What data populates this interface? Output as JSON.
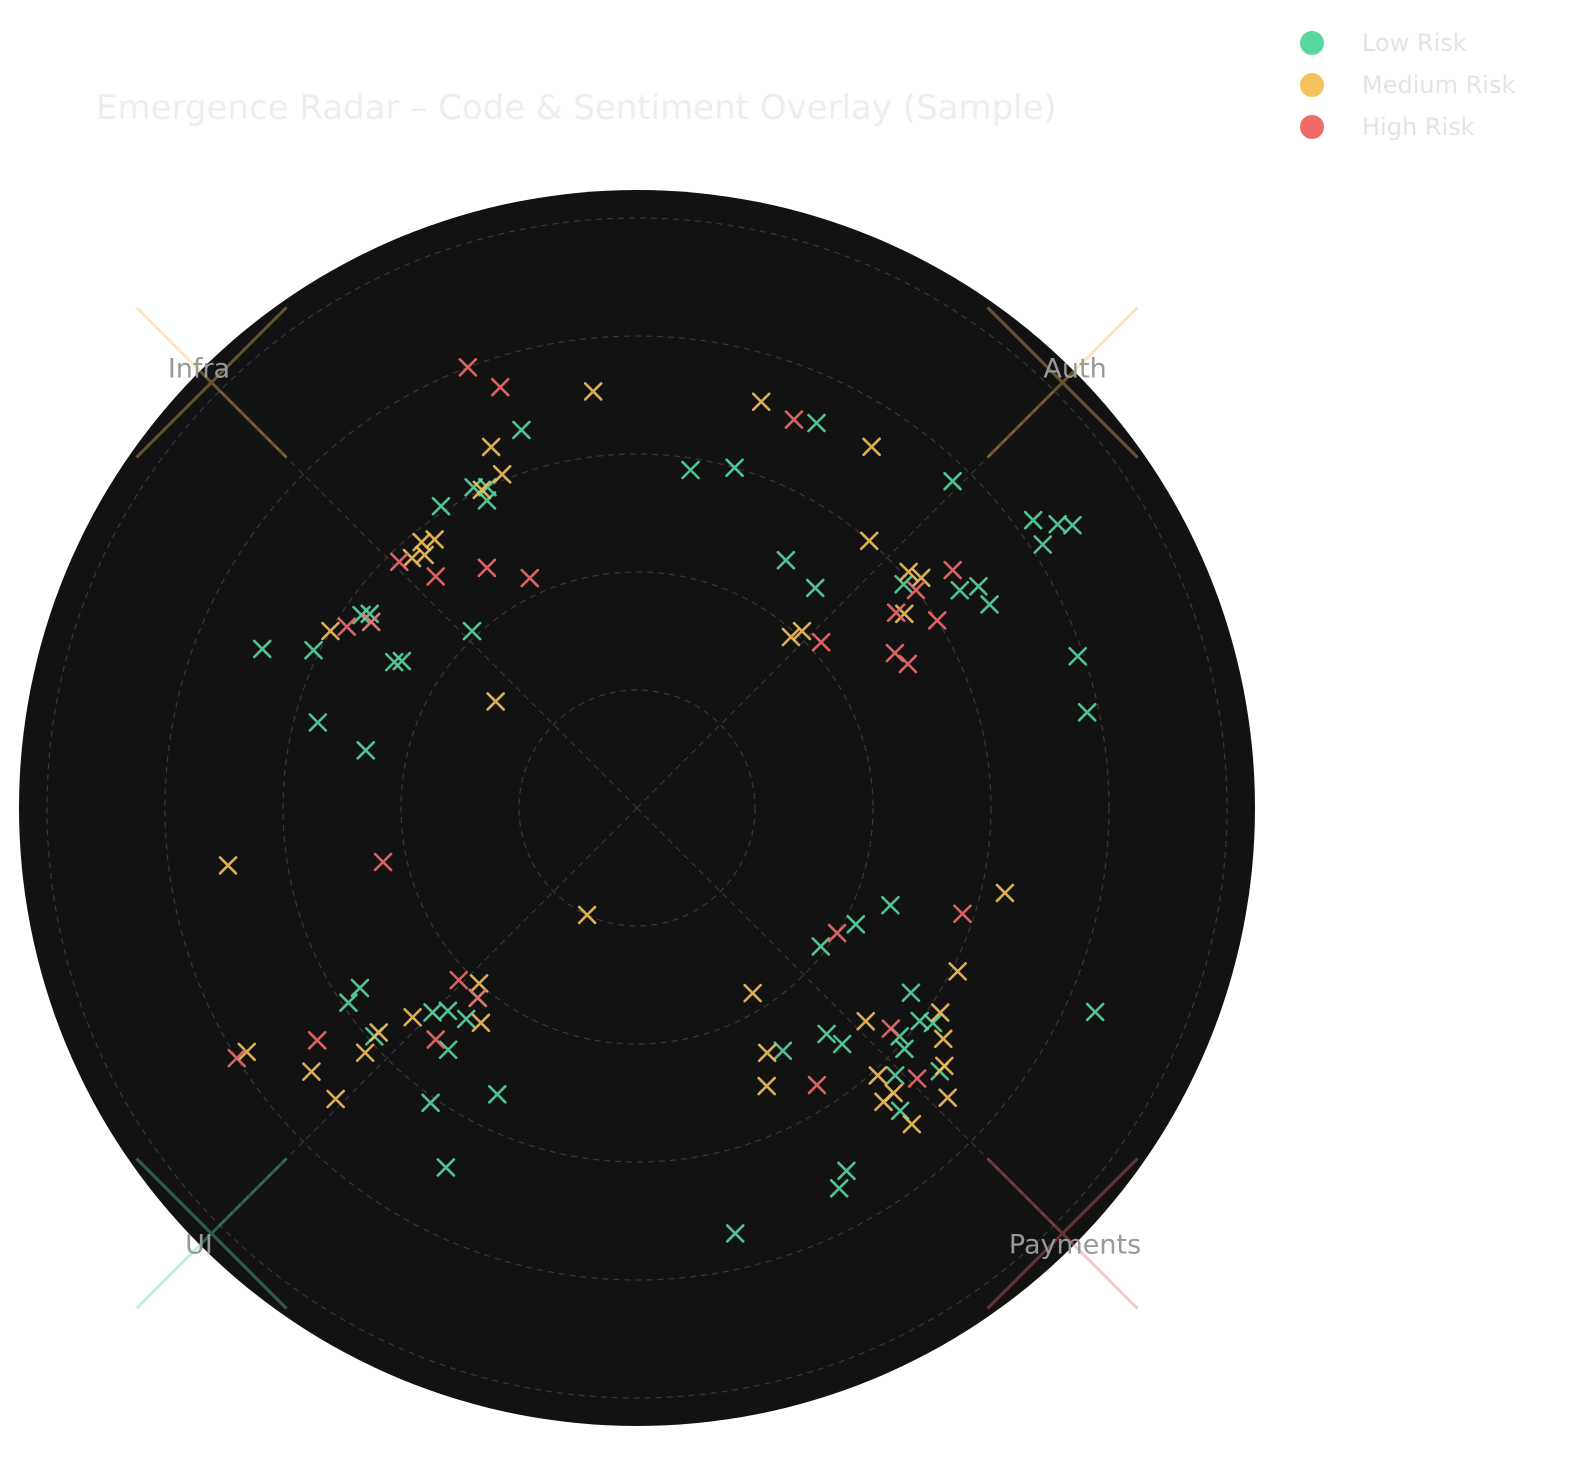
{
  "chart_data": {
    "type": "scatter",
    "projection": "polar",
    "title": "Emergence Radar – Code & Sentiment Overlay (Sample)",
    "quadrants": [
      "Auth",
      "Payments",
      "UI",
      "Infra"
    ],
    "quadrant_angles_deg": [
      45,
      135,
      225,
      315
    ],
    "r_range": [
      0,
      1
    ],
    "r_grid": [
      0.2,
      0.4,
      0.6,
      0.8,
      1.0
    ],
    "grid": true,
    "marker": "x",
    "background": "#121212",
    "legend": {
      "placement": "top-right",
      "entries": [
        {
          "name": "Low Risk",
          "color": "#58d6a0"
        },
        {
          "name": "Medium Risk",
          "color": "#f4c15d"
        },
        {
          "name": "High Risk",
          "color": "#ef6b6b"
        }
      ]
    },
    "quadrant_markers": [
      {
        "quadrant": "Auth",
        "angle_deg": 45,
        "r": 1.02,
        "color": "#f4c15d"
      },
      {
        "quadrant": "Payments",
        "angle_deg": 135,
        "r": 1.02,
        "color": "#ef6b6b"
      },
      {
        "quadrant": "UI",
        "angle_deg": 225,
        "r": 1.02,
        "color": "#58d6a0"
      },
      {
        "quadrant": "Infra",
        "angle_deg": 315,
        "r": 1.02,
        "color": "#f4c15d"
      }
    ],
    "series": [
      {
        "name": "Low Risk",
        "color": "#58d6a0",
        "points": [
          {
            "angle_deg": 16,
            "r": 0.6
          },
          {
            "angle_deg": 25,
            "r": 0.72
          },
          {
            "angle_deg": 31,
            "r": 0.49
          },
          {
            "angle_deg": 39,
            "r": 0.48
          },
          {
            "angle_deg": 44,
            "r": 0.77
          },
          {
            "angle_deg": 50,
            "r": 0.59
          },
          {
            "angle_deg": 54,
            "r": 0.83
          },
          {
            "angle_deg": 56,
            "r": 0.66
          },
          {
            "angle_deg": 56,
            "r": 0.86
          },
          {
            "angle_deg": 57,
            "r": 0.82
          },
          {
            "angle_deg": 57,
            "r": 0.69
          },
          {
            "angle_deg": 57,
            "r": 0.88
          },
          {
            "angle_deg": 60,
            "r": 0.69
          },
          {
            "angle_deg": 71,
            "r": 0.79
          },
          {
            "angle_deg": 78,
            "r": 0.78
          },
          {
            "angle_deg": 111,
            "r": 0.46
          },
          {
            "angle_deg": 114,
            "r": 0.85
          },
          {
            "angle_deg": 118,
            "r": 0.42
          },
          {
            "angle_deg": 124,
            "r": 0.56
          },
          {
            "angle_deg": 126,
            "r": 0.62
          },
          {
            "angle_deg": 127,
            "r": 0.6
          },
          {
            "angle_deg": 127,
            "r": 0.39
          },
          {
            "angle_deg": 131,
            "r": 0.68
          },
          {
            "angle_deg": 131,
            "r": 0.59
          },
          {
            "angle_deg": 132,
            "r": 0.61
          },
          {
            "angle_deg": 136,
            "r": 0.63
          },
          {
            "angle_deg": 139,
            "r": 0.53
          },
          {
            "angle_deg": 149,
            "r": 0.48
          },
          {
            "angle_deg": 150,
            "r": 0.71
          },
          {
            "angle_deg": 152,
            "r": 0.73
          },
          {
            "angle_deg": 167,
            "r": 0.74
          },
          {
            "angle_deg": 140,
            "r": 0.5
          },
          {
            "angle_deg": 139,
            "r": 0.68
          },
          {
            "angle_deg": 206,
            "r": 0.54
          },
          {
            "angle_deg": 208,
            "r": 0.69
          },
          {
            "angle_deg": 215,
            "r": 0.61
          },
          {
            "angle_deg": 218,
            "r": 0.52
          },
          {
            "angle_deg": 219,
            "r": 0.46
          },
          {
            "angle_deg": 220,
            "r": 0.42
          },
          {
            "angle_deg": 223,
            "r": 0.47
          },
          {
            "angle_deg": 225,
            "r": 0.49
          },
          {
            "angle_deg": 229,
            "r": 0.59
          },
          {
            "angle_deg": 236,
            "r": 0.59
          },
          {
            "angle_deg": 237,
            "r": 0.56
          },
          {
            "angle_deg": 282,
            "r": 0.47
          },
          {
            "angle_deg": 285,
            "r": 0.56
          },
          {
            "angle_deg": 293,
            "r": 0.69
          },
          {
            "angle_deg": 296,
            "r": 0.61
          },
          {
            "angle_deg": 301,
            "r": 0.48
          },
          {
            "angle_deg": 302,
            "r": 0.47
          },
          {
            "angle_deg": 305,
            "r": 0.55
          },
          {
            "angle_deg": 305,
            "r": 0.57
          },
          {
            "angle_deg": 306,
            "r": 0.56
          },
          {
            "angle_deg": 317,
            "r": 0.41
          },
          {
            "angle_deg": 327,
            "r": 0.61
          },
          {
            "angle_deg": 333,
            "r": 0.61
          },
          {
            "angle_deg": 334,
            "r": 0.58
          },
          {
            "angle_deg": 335,
            "r": 0.6
          },
          {
            "angle_deg": 343,
            "r": 0.67
          },
          {
            "angle_deg": 9,
            "r": 0.58
          }
        ]
      },
      {
        "name": "Medium Risk",
        "color": "#f4c15d",
        "points": [
          {
            "angle_deg": 17,
            "r": 0.72
          },
          {
            "angle_deg": 33,
            "r": 0.73
          },
          {
            "angle_deg": 41,
            "r": 0.6
          },
          {
            "angle_deg": 42,
            "r": 0.39
          },
          {
            "angle_deg": 43,
            "r": 0.41
          },
          {
            "angle_deg": 49,
            "r": 0.61
          },
          {
            "angle_deg": 51,
            "r": 0.62
          },
          {
            "angle_deg": 54,
            "r": 0.56
          },
          {
            "angle_deg": 103,
            "r": 0.64
          },
          {
            "angle_deg": 117,
            "r": 0.61
          },
          {
            "angle_deg": 124,
            "r": 0.62
          },
          {
            "angle_deg": 127,
            "r": 0.65
          },
          {
            "angle_deg": 130,
            "r": 0.68
          },
          {
            "angle_deg": 133,
            "r": 0.53
          },
          {
            "angle_deg": 133,
            "r": 0.72
          },
          {
            "angle_deg": 138,
            "r": 0.65
          },
          {
            "angle_deg": 138,
            "r": 0.61
          },
          {
            "angle_deg": 139,
            "r": 0.71
          },
          {
            "angle_deg": 140,
            "r": 0.65
          },
          {
            "angle_deg": 148,
            "r": 0.37
          },
          {
            "angle_deg": 152,
            "r": 0.47
          },
          {
            "angle_deg": 155,
            "r": 0.52
          },
          {
            "angle_deg": 205,
            "r": 0.2
          },
          {
            "angle_deg": 216,
            "r": 0.45
          },
          {
            "angle_deg": 222,
            "r": 0.4
          },
          {
            "angle_deg": 226,
            "r": 0.71
          },
          {
            "angle_deg": 227,
            "r": 0.52
          },
          {
            "angle_deg": 228,
            "r": 0.62
          },
          {
            "angle_deg": 229,
            "r": 0.58
          },
          {
            "angle_deg": 231,
            "r": 0.71
          },
          {
            "angle_deg": 238,
            "r": 0.78
          },
          {
            "angle_deg": 262,
            "r": 0.7
          },
          {
            "angle_deg": 300,
            "r": 0.6
          },
          {
            "angle_deg": 307,
            "r": 0.3
          },
          {
            "angle_deg": 318,
            "r": 0.57
          },
          {
            "angle_deg": 320,
            "r": 0.56
          },
          {
            "angle_deg": 323,
            "r": 0.57
          },
          {
            "angle_deg": 334,
            "r": 0.6
          },
          {
            "angle_deg": 338,
            "r": 0.66
          },
          {
            "angle_deg": 338,
            "r": 0.61
          },
          {
            "angle_deg": 354,
            "r": 0.71
          },
          {
            "angle_deg": 321,
            "r": 0.58
          }
        ]
      },
      {
        "name": "High Risk",
        "color": "#ef6b6b",
        "points": [
          {
            "angle_deg": 22,
            "r": 0.71
          },
          {
            "angle_deg": 48,
            "r": 0.42
          },
          {
            "angle_deg": 52,
            "r": 0.6
          },
          {
            "angle_deg": 53,
            "r": 0.55
          },
          {
            "angle_deg": 58,
            "r": 0.6
          },
          {
            "angle_deg": 59,
            "r": 0.51
          },
          {
            "angle_deg": 62,
            "r": 0.52
          },
          {
            "angle_deg": 53,
            "r": 0.67
          },
          {
            "angle_deg": 108,
            "r": 0.58
          },
          {
            "angle_deg": 122,
            "r": 0.4
          },
          {
            "angle_deg": 131,
            "r": 0.57
          },
          {
            "angle_deg": 134,
            "r": 0.66
          },
          {
            "angle_deg": 147,
            "r": 0.56
          },
          {
            "angle_deg": 220,
            "r": 0.42
          },
          {
            "angle_deg": 221,
            "r": 0.52
          },
          {
            "angle_deg": 226,
            "r": 0.42
          },
          {
            "angle_deg": 234,
            "r": 0.67
          },
          {
            "angle_deg": 238,
            "r": 0.8
          },
          {
            "angle_deg": 258,
            "r": 0.44
          },
          {
            "angle_deg": 302,
            "r": 0.58
          },
          {
            "angle_deg": 305,
            "r": 0.55
          },
          {
            "angle_deg": 319,
            "r": 0.52
          },
          {
            "angle_deg": 328,
            "r": 0.48
          },
          {
            "angle_deg": 335,
            "r": 0.43
          },
          {
            "angle_deg": 339,
            "r": 0.8
          },
          {
            "angle_deg": 342,
            "r": 0.75
          },
          {
            "angle_deg": 316,
            "r": 0.58
          }
        ]
      }
    ]
  }
}
